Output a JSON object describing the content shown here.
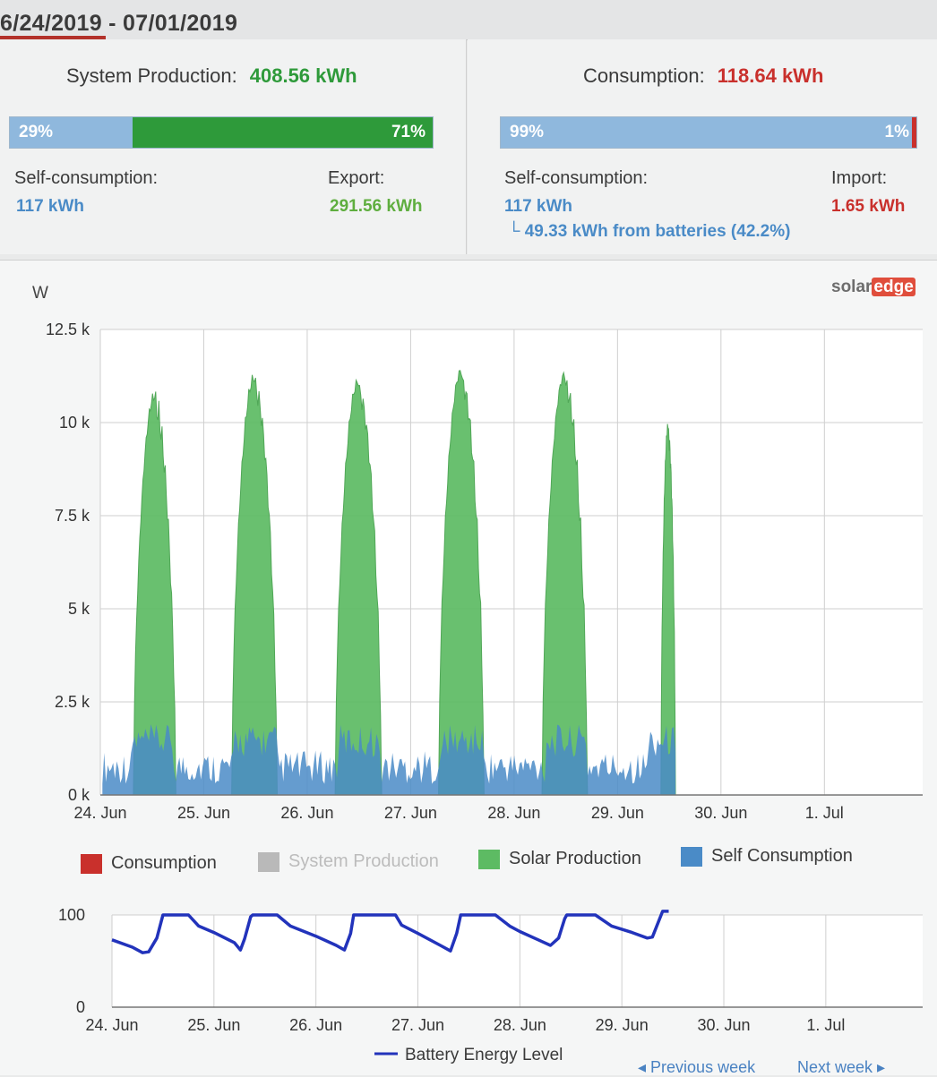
{
  "header": {
    "date_range": "6/24/2019 - 07/01/2019"
  },
  "production": {
    "label": "System Production:",
    "value": "408.56 kWh",
    "self_pct_label": "29%",
    "export_pct_label": "71%",
    "self_fraction": 0.29,
    "self_label": "Self-consumption:",
    "self_value": "117 kWh",
    "export_label": "Export:",
    "export_value": "291.56 kWh"
  },
  "consumption": {
    "label": "Consumption:",
    "value": "118.64 kWh",
    "self_pct_label": "99%",
    "import_pct_label": "1%",
    "self_fraction": 0.99,
    "self_label": "Self-consumption:",
    "self_value": "117 kWh",
    "batteries_note": "└ 49.33 kWh from batteries (42.2%)",
    "import_label": "Import:",
    "import_value": "1.65 kWh"
  },
  "brand": {
    "solar": "solar",
    "edge": "edge"
  },
  "colors": {
    "production_green": "#2e9a3a",
    "consumption_red": "#c9302c",
    "self_blue": "#4a8bc7",
    "bar_blue": "#8fb8dd",
    "solar_green": "#5dbb63",
    "system_gray": "#b9b9b9",
    "battery_blue": "#2233bb"
  },
  "chart_data": [
    {
      "type": "area",
      "ylabel": "W",
      "y_ticks": [
        "0 k",
        "2.5 k",
        "5 k",
        "7.5 k",
        "10 k",
        "12.5 k"
      ],
      "ylim": [
        0,
        12500
      ],
      "x_ticks": [
        "24. Jun",
        "25. Jun",
        "26. Jun",
        "27. Jun",
        "28. Jun",
        "29. Jun",
        "30. Jun",
        "1. Jul"
      ],
      "grid": true,
      "legend_position": "bottom",
      "series": [
        {
          "name": "Consumption",
          "color": "#c9302c",
          "visible": true
        },
        {
          "name": "System Production",
          "color": "#b9b9b9",
          "visible": false
        },
        {
          "name": "Solar Production",
          "color": "#5dbb63",
          "visible": true,
          "days": [
            {
              "start": 24.32,
              "end": 24.73,
              "peak": 10900
            },
            {
              "start": 25.27,
              "end": 25.71,
              "peak": 11400
            },
            {
              "start": 26.27,
              "end": 26.72,
              "peak": 11300
            },
            {
              "start": 27.27,
              "end": 27.71,
              "peak": 11600
            },
            {
              "start": 28.27,
              "end": 28.71,
              "peak": 11500
            },
            {
              "start": 29.42,
              "end": 29.56,
              "peak": 10100
            }
          ]
        },
        {
          "name": "Self Consumption",
          "color": "#4a8bc7",
          "visible": true,
          "baseline": 600,
          "daytime_level": 1300,
          "end_x": 29.56
        }
      ]
    },
    {
      "type": "line",
      "y_ticks": [
        "0",
        "100"
      ],
      "ylim": [
        0,
        100
      ],
      "x_ticks": [
        "24. Jun",
        "25. Jun",
        "26. Jun",
        "27. Jun",
        "28. Jun",
        "29. Jun",
        "30. Jun",
        "1. Jul"
      ],
      "series": [
        {
          "name": "Battery Energy Level",
          "color": "#2233bb",
          "points": [
            [
              24.0,
              73
            ],
            [
              24.2,
              65
            ],
            [
              24.3,
              59
            ],
            [
              24.36,
              60
            ],
            [
              24.44,
              75
            ],
            [
              24.5,
              100
            ],
            [
              24.75,
              100
            ],
            [
              24.85,
              88
            ],
            [
              25.0,
              81
            ],
            [
              25.2,
              70
            ],
            [
              25.26,
              62
            ],
            [
              25.3,
              74
            ],
            [
              25.36,
              98
            ],
            [
              25.38,
              100
            ],
            [
              25.62,
              100
            ],
            [
              25.75,
              88
            ],
            [
              26.0,
              77
            ],
            [
              26.2,
              67
            ],
            [
              26.28,
              62
            ],
            [
              26.34,
              80
            ],
            [
              26.37,
              100
            ],
            [
              26.78,
              100
            ],
            [
              26.84,
              89
            ],
            [
              27.0,
              80
            ],
            [
              27.22,
              67
            ],
            [
              27.32,
              61
            ],
            [
              27.38,
              80
            ],
            [
              27.42,
              100
            ],
            [
              27.76,
              100
            ],
            [
              27.9,
              88
            ],
            [
              28.0,
              82
            ],
            [
              28.2,
              72
            ],
            [
              28.3,
              67
            ],
            [
              28.38,
              75
            ],
            [
              28.44,
              96
            ],
            [
              28.46,
              100
            ],
            [
              28.74,
              100
            ],
            [
              28.9,
              88
            ],
            [
              29.1,
              81
            ],
            [
              29.25,
              75
            ],
            [
              29.3,
              76
            ],
            [
              29.4,
              104
            ],
            [
              29.46,
              104
            ]
          ]
        }
      ]
    }
  ],
  "legend": {
    "consumption": "Consumption",
    "system_production": "System Production",
    "solar_production": "Solar Production",
    "self_consumption": "Self Consumption",
    "battery": "Battery Energy Level"
  },
  "nav": {
    "previous": "◂ Previous week",
    "next": "Next week ▸"
  }
}
